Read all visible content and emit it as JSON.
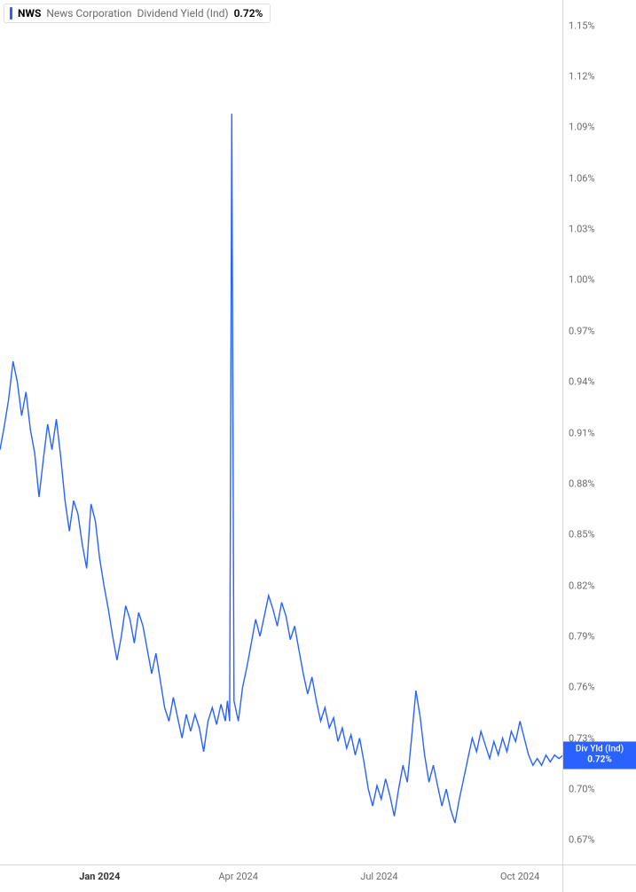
{
  "legend": {
    "ticker": "NWS",
    "company": "News Corporation",
    "metric": "Dividend Yield (Ind)",
    "value": "0.72%"
  },
  "badge": {
    "label": "Div Yld (Ind)",
    "value": "0.72%"
  },
  "y_axis": {
    "min": 0.655,
    "max": 1.165,
    "ticks": [
      {
        "v": 1.15,
        "label": "1.15%"
      },
      {
        "v": 1.12,
        "label": "1.12%"
      },
      {
        "v": 1.09,
        "label": "1.09%"
      },
      {
        "v": 1.06,
        "label": "1.06%"
      },
      {
        "v": 1.03,
        "label": "1.03%"
      },
      {
        "v": 1.0,
        "label": "1.00%"
      },
      {
        "v": 0.97,
        "label": "0.97%"
      },
      {
        "v": 0.94,
        "label": "0.94%"
      },
      {
        "v": 0.91,
        "label": "0.91%"
      },
      {
        "v": 0.88,
        "label": "0.88%"
      },
      {
        "v": 0.85,
        "label": "0.85%"
      },
      {
        "v": 0.82,
        "label": "0.82%"
      },
      {
        "v": 0.79,
        "label": "0.79%"
      },
      {
        "v": 0.76,
        "label": "0.76%"
      },
      {
        "v": 0.73,
        "label": "0.73%"
      },
      {
        "v": 0.7,
        "label": "0.70%"
      },
      {
        "v": 0.67,
        "label": "0.67%"
      }
    ]
  },
  "x_axis": {
    "min": 0,
    "max": 260,
    "ticks": [
      {
        "x": 46,
        "label": "Jan 2024",
        "bold": true
      },
      {
        "x": 110,
        "label": "Apr 2024",
        "bold": false
      },
      {
        "x": 175,
        "label": "Jul 2024",
        "bold": false
      },
      {
        "x": 240,
        "label": "Oct 2024",
        "bold": false
      }
    ]
  },
  "chart": {
    "type": "line",
    "line_color": "#2962ff",
    "line_width": 1.4,
    "background_color": "#ffffff",
    "current_value": 0.72,
    "series": [
      {
        "x": 0,
        "y": 0.9
      },
      {
        "x": 2,
        "y": 0.914
      },
      {
        "x": 4,
        "y": 0.93
      },
      {
        "x": 6,
        "y": 0.952
      },
      {
        "x": 8,
        "y": 0.94
      },
      {
        "x": 10,
        "y": 0.92
      },
      {
        "x": 12,
        "y": 0.934
      },
      {
        "x": 14,
        "y": 0.912
      },
      {
        "x": 16,
        "y": 0.898
      },
      {
        "x": 18,
        "y": 0.872
      },
      {
        "x": 20,
        "y": 0.894
      },
      {
        "x": 22,
        "y": 0.915
      },
      {
        "x": 24,
        "y": 0.9
      },
      {
        "x": 26,
        "y": 0.918
      },
      {
        "x": 28,
        "y": 0.896
      },
      {
        "x": 30,
        "y": 0.87
      },
      {
        "x": 32,
        "y": 0.852
      },
      {
        "x": 34,
        "y": 0.87
      },
      {
        "x": 36,
        "y": 0.862
      },
      {
        "x": 38,
        "y": 0.844
      },
      {
        "x": 40,
        "y": 0.83
      },
      {
        "x": 42,
        "y": 0.868
      },
      {
        "x": 44,
        "y": 0.858
      },
      {
        "x": 46,
        "y": 0.836
      },
      {
        "x": 48,
        "y": 0.82
      },
      {
        "x": 50,
        "y": 0.806
      },
      {
        "x": 52,
        "y": 0.79
      },
      {
        "x": 54,
        "y": 0.776
      },
      {
        "x": 56,
        "y": 0.79
      },
      {
        "x": 58,
        "y": 0.808
      },
      {
        "x": 60,
        "y": 0.8
      },
      {
        "x": 62,
        "y": 0.786
      },
      {
        "x": 64,
        "y": 0.804
      },
      {
        "x": 66,
        "y": 0.796
      },
      {
        "x": 68,
        "y": 0.782
      },
      {
        "x": 70,
        "y": 0.768
      },
      {
        "x": 72,
        "y": 0.78
      },
      {
        "x": 74,
        "y": 0.764
      },
      {
        "x": 76,
        "y": 0.748
      },
      {
        "x": 78,
        "y": 0.74
      },
      {
        "x": 80,
        "y": 0.754
      },
      {
        "x": 82,
        "y": 0.742
      },
      {
        "x": 84,
        "y": 0.73
      },
      {
        "x": 86,
        "y": 0.744
      },
      {
        "x": 88,
        "y": 0.734
      },
      {
        "x": 90,
        "y": 0.744
      },
      {
        "x": 92,
        "y": 0.736
      },
      {
        "x": 94,
        "y": 0.722
      },
      {
        "x": 96,
        "y": 0.74
      },
      {
        "x": 98,
        "y": 0.748
      },
      {
        "x": 100,
        "y": 0.738
      },
      {
        "x": 102,
        "y": 0.75
      },
      {
        "x": 104,
        "y": 0.74
      },
      {
        "x": 105,
        "y": 0.752
      },
      {
        "x": 106,
        "y": 0.74
      },
      {
        "x": 107,
        "y": 1.098
      },
      {
        "x": 108,
        "y": 0.752
      },
      {
        "x": 110,
        "y": 0.74
      },
      {
        "x": 112,
        "y": 0.76
      },
      {
        "x": 114,
        "y": 0.772
      },
      {
        "x": 116,
        "y": 0.786
      },
      {
        "x": 118,
        "y": 0.8
      },
      {
        "x": 120,
        "y": 0.79
      },
      {
        "x": 122,
        "y": 0.802
      },
      {
        "x": 124,
        "y": 0.814
      },
      {
        "x": 126,
        "y": 0.806
      },
      {
        "x": 128,
        "y": 0.796
      },
      {
        "x": 130,
        "y": 0.81
      },
      {
        "x": 132,
        "y": 0.802
      },
      {
        "x": 134,
        "y": 0.788
      },
      {
        "x": 136,
        "y": 0.796
      },
      {
        "x": 138,
        "y": 0.782
      },
      {
        "x": 140,
        "y": 0.768
      },
      {
        "x": 142,
        "y": 0.756
      },
      {
        "x": 144,
        "y": 0.766
      },
      {
        "x": 146,
        "y": 0.752
      },
      {
        "x": 148,
        "y": 0.74
      },
      {
        "x": 150,
        "y": 0.748
      },
      {
        "x": 152,
        "y": 0.736
      },
      {
        "x": 154,
        "y": 0.742
      },
      {
        "x": 156,
        "y": 0.728
      },
      {
        "x": 158,
        "y": 0.736
      },
      {
        "x": 160,
        "y": 0.724
      },
      {
        "x": 162,
        "y": 0.732
      },
      {
        "x": 164,
        "y": 0.72
      },
      {
        "x": 166,
        "y": 0.73
      },
      {
        "x": 168,
        "y": 0.716
      },
      {
        "x": 170,
        "y": 0.7
      },
      {
        "x": 172,
        "y": 0.69
      },
      {
        "x": 174,
        "y": 0.702
      },
      {
        "x": 176,
        "y": 0.694
      },
      {
        "x": 178,
        "y": 0.706
      },
      {
        "x": 180,
        "y": 0.696
      },
      {
        "x": 182,
        "y": 0.684
      },
      {
        "x": 184,
        "y": 0.7
      },
      {
        "x": 186,
        "y": 0.714
      },
      {
        "x": 188,
        "y": 0.704
      },
      {
        "x": 190,
        "y": 0.73
      },
      {
        "x": 192,
        "y": 0.758
      },
      {
        "x": 194,
        "y": 0.742
      },
      {
        "x": 196,
        "y": 0.72
      },
      {
        "x": 198,
        "y": 0.704
      },
      {
        "x": 200,
        "y": 0.714
      },
      {
        "x": 202,
        "y": 0.702
      },
      {
        "x": 204,
        "y": 0.69
      },
      {
        "x": 206,
        "y": 0.7
      },
      {
        "x": 208,
        "y": 0.688
      },
      {
        "x": 210,
        "y": 0.68
      },
      {
        "x": 212,
        "y": 0.694
      },
      {
        "x": 214,
        "y": 0.706
      },
      {
        "x": 216,
        "y": 0.718
      },
      {
        "x": 218,
        "y": 0.73
      },
      {
        "x": 220,
        "y": 0.722
      },
      {
        "x": 222,
        "y": 0.734
      },
      {
        "x": 224,
        "y": 0.726
      },
      {
        "x": 226,
        "y": 0.718
      },
      {
        "x": 228,
        "y": 0.728
      },
      {
        "x": 230,
        "y": 0.72
      },
      {
        "x": 232,
        "y": 0.73
      },
      {
        "x": 234,
        "y": 0.722
      },
      {
        "x": 236,
        "y": 0.734
      },
      {
        "x": 238,
        "y": 0.728
      },
      {
        "x": 240,
        "y": 0.74
      },
      {
        "x": 242,
        "y": 0.73
      },
      {
        "x": 244,
        "y": 0.72
      },
      {
        "x": 246,
        "y": 0.714
      },
      {
        "x": 248,
        "y": 0.718
      },
      {
        "x": 250,
        "y": 0.714
      },
      {
        "x": 252,
        "y": 0.72
      },
      {
        "x": 254,
        "y": 0.716
      },
      {
        "x": 256,
        "y": 0.72
      },
      {
        "x": 258,
        "y": 0.718
      },
      {
        "x": 260,
        "y": 0.72
      }
    ]
  }
}
